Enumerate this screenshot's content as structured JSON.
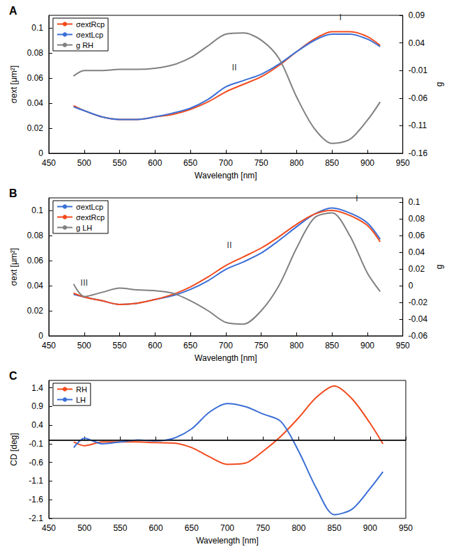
{
  "chart_data": [
    {
      "type": "line",
      "title": "A",
      "x_label": "Wavelength [nm]",
      "y_label": "σext [μm²]",
      "y2_label": "g",
      "x": [
        485,
        500,
        525,
        550,
        575,
        600,
        625,
        650,
        675,
        700,
        725,
        750,
        775,
        800,
        825,
        850,
        875,
        900,
        918
      ],
      "xlim": [
        450,
        950
      ],
      "xticks": [
        450,
        500,
        550,
        600,
        650,
        700,
        750,
        800,
        850,
        900,
        950
      ],
      "ylim": [
        0,
        0.11
      ],
      "yticks": [
        0,
        0.02,
        0.04,
        0.06,
        0.08,
        0.1
      ],
      "y2lim": [
        -0.16,
        0.09
      ],
      "y2ticks": [
        -0.16,
        -0.11,
        -0.06,
        -0.01,
        0.04,
        0.09
      ],
      "grid": false,
      "legend": "upper left",
      "series": [
        {
          "name": "σextRcp",
          "color": "#f24a1c",
          "values": [
            0.038,
            0.034,
            0.029,
            0.027,
            0.027,
            0.029,
            0.031,
            0.035,
            0.041,
            0.049,
            0.055,
            0.061,
            0.07,
            0.081,
            0.091,
            0.097,
            0.097,
            0.093,
            0.086
          ]
        },
        {
          "name": "σextLcp",
          "color": "#3b6fd6",
          "values": [
            0.037,
            0.034,
            0.029,
            0.027,
            0.027,
            0.029,
            0.032,
            0.036,
            0.043,
            0.053,
            0.058,
            0.063,
            0.071,
            0.081,
            0.09,
            0.095,
            0.095,
            0.091,
            0.085
          ]
        },
        {
          "name": "g RH",
          "color": "#808080",
          "axis": "y2",
          "values": [
            -0.02,
            -0.01,
            -0.01,
            -0.008,
            -0.008,
            -0.006,
            0.0,
            0.013,
            0.035,
            0.056,
            0.058,
            0.045,
            0.012,
            -0.058,
            -0.115,
            -0.142,
            -0.135,
            -0.1,
            -0.067
          ]
        }
      ],
      "annotations": [
        {
          "text": "I",
          "x": 862,
          "y": 0.104
        },
        {
          "text": "II",
          "x": 712,
          "y": 0.064
        }
      ]
    },
    {
      "type": "line",
      "title": "B",
      "x_label": "Wavelength [nm]",
      "y_label": "σext [μm²]",
      "y2_label": "g",
      "x": [
        485,
        500,
        525,
        550,
        575,
        600,
        625,
        650,
        675,
        700,
        725,
        750,
        775,
        800,
        825,
        850,
        875,
        900,
        918
      ],
      "xlim": [
        450,
        950
      ],
      "xticks": [
        450,
        500,
        550,
        600,
        650,
        700,
        750,
        800,
        850,
        900,
        950
      ],
      "ylim": [
        0,
        0.11
      ],
      "yticks": [
        0,
        0.02,
        0.04,
        0.06,
        0.08,
        0.1
      ],
      "y2lim": [
        -0.06,
        0.105
      ],
      "y2ticks": [
        -0.06,
        -0.04,
        -0.02,
        0,
        0.02,
        0.04,
        0.06,
        0.08,
        0.1
      ],
      "grid": false,
      "legend": "upper left",
      "series": [
        {
          "name": "σextLcp",
          "color": "#3b6fd6",
          "values": [
            0.033,
            0.031,
            0.028,
            0.025,
            0.026,
            0.029,
            0.032,
            0.037,
            0.044,
            0.053,
            0.059,
            0.066,
            0.076,
            0.087,
            0.097,
            0.102,
            0.098,
            0.09,
            0.077
          ]
        },
        {
          "name": "σextRcp",
          "color": "#f24a1c",
          "values": [
            0.034,
            0.031,
            0.028,
            0.025,
            0.026,
            0.029,
            0.033,
            0.039,
            0.047,
            0.056,
            0.063,
            0.07,
            0.079,
            0.089,
            0.097,
            0.1,
            0.096,
            0.088,
            0.075
          ]
        },
        {
          "name": "g LH",
          "color": "#808080",
          "axis": "y2",
          "values": [
            0.002,
            -0.013,
            -0.008,
            -0.003,
            -0.005,
            -0.006,
            -0.009,
            -0.018,
            -0.03,
            -0.044,
            -0.046,
            -0.03,
            0.0,
            0.045,
            0.081,
            0.087,
            0.06,
            0.015,
            -0.007
          ]
        }
      ],
      "annotations": [
        {
          "text": "I",
          "x": 885,
          "y": 0.105
        },
        {
          "text": "II",
          "x": 705,
          "y": 0.068
        },
        {
          "text": "III",
          "x": 500,
          "y": 0.038
        }
      ]
    },
    {
      "type": "line",
      "title": "C",
      "x_label": "Wavelength [nm]",
      "y_label": "CD [deg]",
      "x": [
        485,
        500,
        525,
        550,
        575,
        600,
        625,
        650,
        675,
        700,
        725,
        750,
        775,
        800,
        825,
        850,
        875,
        900,
        918
      ],
      "xlim": [
        450,
        950
      ],
      "xticks": [
        450,
        500,
        550,
        600,
        650,
        700,
        750,
        800,
        850,
        900,
        950
      ],
      "ylim": [
        -2.1,
        1.6
      ],
      "yticks": [
        -2.1,
        -1.6,
        -1.1,
        -0.6,
        -0.1,
        0.4,
        0.9,
        1.4
      ],
      "grid": false,
      "legend": "upper left",
      "hline": 0,
      "series": [
        {
          "name": "RH",
          "color": "#f24a1c",
          "values": [
            -0.05,
            -0.15,
            -0.05,
            -0.05,
            -0.05,
            -0.07,
            -0.08,
            -0.2,
            -0.45,
            -0.65,
            -0.62,
            -0.3,
            0.1,
            0.6,
            1.15,
            1.45,
            1.1,
            0.45,
            -0.1
          ]
        },
        {
          "name": "LH",
          "color": "#3b6fd6",
          "values": [
            -0.2,
            0.05,
            -0.1,
            -0.05,
            0.0,
            -0.02,
            0.05,
            0.3,
            0.75,
            0.98,
            0.9,
            0.7,
            0.5,
            -0.3,
            -1.3,
            -2.0,
            -1.85,
            -1.3,
            -0.85
          ]
        }
      ]
    }
  ]
}
